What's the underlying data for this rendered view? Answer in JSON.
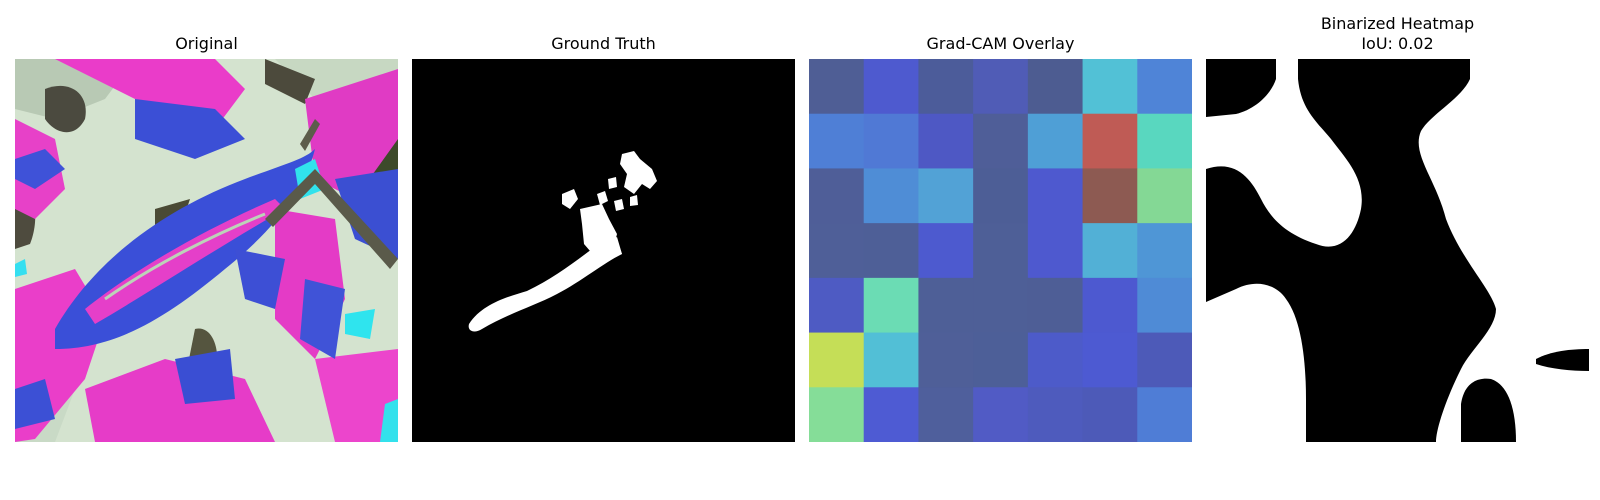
{
  "panels": {
    "original": {
      "title": "Original"
    },
    "ground_truth": {
      "title": "Ground Truth"
    },
    "gradcam": {
      "title": "Grad-CAM Overlay",
      "grid": [
        [
          "#4f5e95",
          "#4e5acf",
          "#4c5c9a",
          "#505cb6",
          "#4d5c91",
          "#52c1d6",
          "#4f84d7"
        ],
        [
          "#4f7fd6",
          "#5079d5",
          "#4e58c4",
          "#4f5e98",
          "#4f9fd6",
          "#bf5b55",
          "#59d7bf"
        ],
        [
          "#4f5e98",
          "#4f8dd6",
          "#52a2d6",
          "#4d5e96",
          "#4e59cf",
          "#8d5a52",
          "#84d895"
        ],
        [
          "#4f5f98",
          "#4e5f97",
          "#4d5acf",
          "#4e5f97",
          "#4e59cf",
          "#52b0d6",
          "#4f96d6"
        ],
        [
          "#4e5bc3",
          "#6bdcb4",
          "#4e5f97",
          "#4e5f97",
          "#4e5e96",
          "#4d59d0",
          "#4f8bd6"
        ],
        [
          "#c5de57",
          "#52bfd6",
          "#4f5f98",
          "#4d5f98",
          "#4d5bc9",
          "#4d5ad2",
          "#4d5ab8"
        ],
        [
          "#85dd98",
          "#4e5bd3",
          "#4f5f9c",
          "#515bc5",
          "#4e5bbd",
          "#4d5ab8",
          "#4f7dd6"
        ]
      ]
    },
    "binarized": {
      "title": "Binarized Heatmap",
      "iou_label": "IoU: 0.02"
    }
  }
}
